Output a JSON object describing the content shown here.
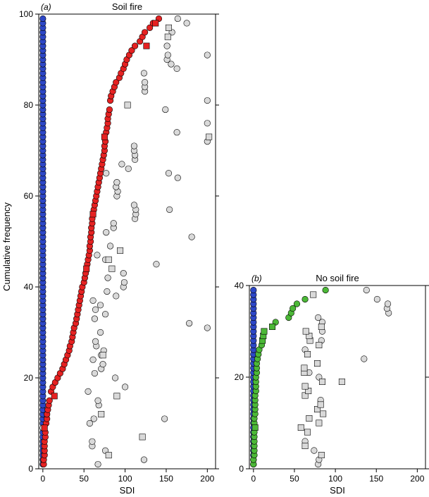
{
  "ylabel": "Cumulative frequency",
  "colors": {
    "blue": "#2d47c7",
    "red": "#e52222",
    "green": "#4cb837",
    "grey": "#d9d9d9",
    "edge": "#000000"
  },
  "chart_data": [
    {
      "type": "scatter",
      "panel": "(a)",
      "title": "Soil fire",
      "xlabel": "SDI",
      "ylabel": "Cumulative frequency",
      "xlim": [
        -5,
        210
      ],
      "ylim": [
        0,
        100
      ],
      "xticks": [
        0,
        50,
        100,
        150,
        200
      ],
      "yticks": [
        0,
        20,
        40,
        60,
        80,
        100
      ],
      "yticks_right": [
        0,
        20,
        40,
        60,
        80,
        100
      ],
      "series": [
        {
          "shape": "circle",
          "color": "blue",
          "x": [
            0
          ],
          "y_from": 1,
          "y_to": 99
        },
        {
          "shape": "circle",
          "color": "grey",
          "points": [
            [
              0,
              9
            ]
          ]
        },
        {
          "shape": "circle",
          "color": "red",
          "points": [
            [
              1,
              1
            ],
            [
              1,
              2
            ],
            [
              2,
              3
            ],
            [
              2,
              4
            ],
            [
              2,
              5
            ],
            [
              2,
              6
            ],
            [
              3,
              7
            ],
            [
              3,
              8
            ],
            [
              4,
              10
            ],
            [
              5,
              11
            ],
            [
              5,
              12
            ],
            [
              6,
              13
            ],
            [
              7,
              14
            ],
            [
              8,
              15
            ],
            [
              10,
              17
            ],
            [
              12,
              18
            ],
            [
              15,
              19
            ],
            [
              18,
              20
            ],
            [
              21,
              21
            ],
            [
              24,
              22
            ],
            [
              26,
              23
            ],
            [
              28,
              24
            ],
            [
              30,
              25
            ],
            [
              32,
              26
            ],
            [
              33,
              27
            ],
            [
              35,
              28
            ],
            [
              36,
              29
            ],
            [
              37,
              30
            ],
            [
              38,
              31
            ],
            [
              40,
              32
            ],
            [
              41,
              33
            ],
            [
              42,
              34
            ],
            [
              43,
              35
            ],
            [
              44,
              36
            ],
            [
              45,
              37
            ],
            [
              46,
              38
            ],
            [
              47,
              39
            ],
            [
              48,
              40
            ],
            [
              50,
              41
            ],
            [
              51,
              42
            ],
            [
              52,
              43
            ],
            [
              54,
              45
            ],
            [
              55,
              46
            ],
            [
              56,
              47
            ],
            [
              57,
              48
            ],
            [
              57,
              49
            ],
            [
              58,
              50
            ],
            [
              58,
              51
            ],
            [
              59,
              52
            ],
            [
              59,
              53
            ],
            [
              60,
              54
            ],
            [
              60,
              55
            ],
            [
              62,
              57
            ],
            [
              63,
              58
            ],
            [
              64,
              59
            ],
            [
              65,
              60
            ],
            [
              66,
              61
            ],
            [
              67,
              62
            ],
            [
              68,
              63
            ],
            [
              69,
              64
            ],
            [
              70,
              65
            ],
            [
              71,
              66
            ],
            [
              72,
              67
            ],
            [
              73,
              68
            ],
            [
              74,
              69
            ],
            [
              75,
              70
            ],
            [
              75,
              71
            ],
            [
              76,
              72
            ],
            [
              77,
              74
            ],
            [
              78,
              75
            ],
            [
              79,
              76
            ],
            [
              79,
              77
            ],
            [
              80,
              78
            ],
            [
              81,
              79
            ],
            [
              82,
              81
            ],
            [
              83,
              82
            ],
            [
              85,
              83
            ],
            [
              87,
              84
            ],
            [
              89,
              85
            ],
            [
              93,
              86
            ],
            [
              95,
              87
            ],
            [
              98,
              88
            ],
            [
              100,
              89
            ],
            [
              102,
              90
            ],
            [
              105,
              91
            ],
            [
              108,
              92
            ],
            [
              112,
              93
            ],
            [
              118,
              94
            ],
            [
              121,
              95
            ],
            [
              124,
              96
            ],
            [
              130,
              97
            ],
            [
              134,
              98
            ],
            [
              141,
              99
            ]
          ]
        },
        {
          "shape": "square",
          "color": "red",
          "points": [
            [
              2,
              9
            ],
            [
              14,
              16
            ],
            [
              53,
              44
            ],
            [
              61,
              56
            ],
            [
              75,
              73
            ],
            [
              126,
              93
            ],
            [
              137,
              98
            ]
          ]
        },
        {
          "shape": "circle",
          "color": "grey",
          "points": [
            [
              67,
              1
            ],
            [
              123,
              2
            ],
            [
              76,
              4
            ],
            [
              60,
              5
            ],
            [
              60,
              6
            ],
            [
              57,
              10
            ],
            [
              62,
              11
            ],
            [
              148,
              11
            ],
            [
              68,
              14
            ],
            [
              67,
              15
            ],
            [
              55,
              17
            ],
            [
              100,
              18
            ],
            [
              88,
              20
            ],
            [
              63,
              21
            ],
            [
              71,
              22
            ],
            [
              73,
              23
            ],
            [
              61,
              24
            ],
            [
              71,
              25
            ],
            [
              74,
              26
            ],
            [
              65,
              27
            ],
            [
              64,
              28
            ],
            [
              70,
              30
            ],
            [
              200,
              31
            ],
            [
              178,
              32
            ],
            [
              63,
              33
            ],
            [
              76,
              34
            ],
            [
              64,
              35
            ],
            [
              70,
              36
            ],
            [
              61,
              37
            ],
            [
              89,
              38
            ],
            [
              78,
              39
            ],
            [
              98,
              40
            ],
            [
              99,
              41
            ],
            [
              79,
              42
            ],
            [
              98,
              43
            ],
            [
              138,
              45
            ],
            [
              76,
              46
            ],
            [
              66,
              47
            ],
            [
              82,
              49
            ],
            [
              181,
              51
            ],
            [
              77,
              52
            ],
            [
              86,
              53
            ],
            [
              86,
              54
            ],
            [
              112,
              55
            ],
            [
              113,
              56
            ],
            [
              113,
              57
            ],
            [
              154,
              57
            ],
            [
              111,
              58
            ],
            [
              90,
              60
            ],
            [
              91,
              61
            ],
            [
              89,
              62
            ],
            [
              90,
              63
            ],
            [
              164,
              64
            ],
            [
              77,
              65
            ],
            [
              153,
              65
            ],
            [
              104,
              66
            ],
            [
              96,
              67
            ],
            [
              112,
              68
            ],
            [
              112,
              69
            ],
            [
              111,
              70
            ],
            [
              111,
              71
            ],
            [
              200,
              72
            ],
            [
              163,
              74
            ],
            [
              200,
              76
            ],
            [
              149,
              79
            ],
            [
              200,
              81
            ],
            [
              124,
              83
            ],
            [
              124,
              84
            ],
            [
              124,
              85
            ],
            [
              123,
              87
            ],
            [
              163,
              88
            ],
            [
              156,
              89
            ],
            [
              151,
              90
            ],
            [
              152,
              91
            ],
            [
              200,
              91
            ],
            [
              151,
              93
            ],
            [
              157,
              96
            ],
            [
              175,
              98
            ],
            [
              164,
              99
            ]
          ]
        },
        {
          "shape": "square",
          "color": "grey",
          "points": [
            [
              80,
              3
            ],
            [
              71,
              12
            ],
            [
              90,
              16
            ],
            [
              121,
              7
            ],
            [
              73,
              25
            ],
            [
              84,
              44
            ],
            [
              80,
              46
            ],
            [
              94,
              48
            ],
            [
              202,
              73
            ],
            [
              103,
              80
            ],
            [
              152,
              95
            ],
            [
              153,
              97
            ]
          ]
        }
      ]
    },
    {
      "type": "scatter",
      "panel": "(b)",
      "title": "No soil fire",
      "xlabel": "SDI",
      "xlim": [
        -5,
        210
      ],
      "ylim": [
        0,
        40
      ],
      "xticks": [
        0,
        50,
        100,
        150,
        200
      ],
      "yticks": [
        0,
        20,
        40
      ],
      "yticks_right": [
        0,
        20,
        40
      ],
      "series": [
        {
          "shape": "circle",
          "color": "blue",
          "x": [
            0
          ],
          "y_from": 1,
          "y_to": 39
        },
        {
          "shape": "circle",
          "color": "green",
          "points": [
            [
              0,
              1
            ],
            [
              0,
              2
            ],
            [
              1,
              3
            ],
            [
              1,
              4
            ],
            [
              1,
              5
            ],
            [
              1,
              6
            ],
            [
              1,
              7
            ],
            [
              1,
              8
            ],
            [
              1,
              10
            ],
            [
              1,
              11
            ],
            [
              2,
              12
            ],
            [
              2,
              13
            ],
            [
              2,
              14
            ],
            [
              2,
              15
            ],
            [
              2,
              16
            ],
            [
              3,
              17
            ],
            [
              3,
              18
            ],
            [
              3,
              19
            ],
            [
              3,
              20
            ],
            [
              4,
              21
            ],
            [
              4,
              22
            ],
            [
              4,
              23
            ],
            [
              5,
              24
            ],
            [
              6,
              25
            ],
            [
              7,
              26
            ],
            [
              10,
              27
            ],
            [
              27,
              32
            ],
            [
              43,
              33
            ],
            [
              46,
              34
            ],
            [
              48,
              35
            ],
            [
              53,
              36
            ],
            [
              63,
              37
            ],
            [
              88,
              39
            ]
          ]
        },
        {
          "shape": "square",
          "color": "green",
          "points": [
            [
              2,
              9
            ],
            [
              11,
              28
            ],
            [
              12,
              29
            ],
            [
              13,
              30
            ],
            [
              23,
              31
            ]
          ]
        },
        {
          "shape": "circle",
          "color": "grey",
          "points": [
            [
              79,
              1
            ],
            [
              80,
              2
            ],
            [
              74,
              4
            ],
            [
              63,
              6
            ],
            [
              82,
              15
            ],
            [
              68,
              21
            ],
            [
              80,
              20
            ],
            [
              63,
              26
            ],
            [
              83,
              28
            ],
            [
              84,
              30
            ],
            [
              84,
              32
            ],
            [
              79,
              33
            ],
            [
              135,
              24
            ],
            [
              165,
              34
            ],
            [
              163,
              35
            ],
            [
              164,
              36
            ],
            [
              151,
              37
            ],
            [
              138,
              39
            ]
          ]
        },
        {
          "shape": "square",
          "color": "grey",
          "points": [
            [
              83,
              3
            ],
            [
              63,
              5
            ],
            [
              66,
              8
            ],
            [
              58,
              9
            ],
            [
              68,
              11
            ],
            [
              80,
              10
            ],
            [
              85,
              12
            ],
            [
              78,
              13
            ],
            [
              82,
              14
            ],
            [
              63,
              16
            ],
            [
              67,
              17
            ],
            [
              63,
              18
            ],
            [
              84,
              19
            ],
            [
              108,
              19
            ],
            [
              62,
              21
            ],
            [
              62,
              22
            ],
            [
              78,
              23
            ],
            [
              66,
              25
            ],
            [
              80,
              27
            ],
            [
              69,
              28
            ],
            [
              68,
              29
            ],
            [
              64,
              30
            ],
            [
              83,
              31
            ],
            [
              73,
              38
            ]
          ]
        }
      ]
    }
  ]
}
